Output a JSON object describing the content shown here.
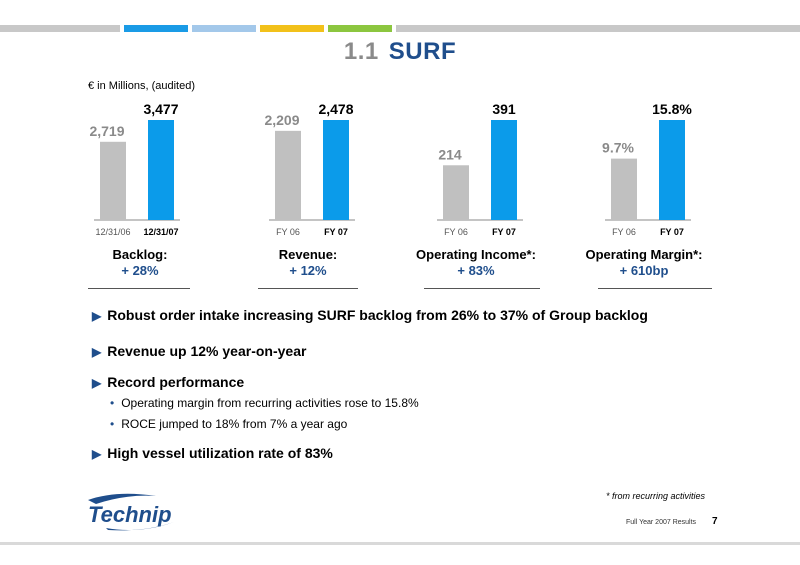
{
  "title": {
    "number": "1.1",
    "text": "SURF"
  },
  "units": "€ in Millions, (audited)",
  "chart_data": [
    {
      "type": "bar",
      "categories": [
        "12/31/06",
        "12/31/07"
      ],
      "values": [
        2719,
        3477
      ],
      "value_labels": [
        "2,719",
        "3,477"
      ],
      "colors": [
        "#c0c0c0",
        "#0b9bea"
      ],
      "title": "Backlog:",
      "change": "+ 28%"
    },
    {
      "type": "bar",
      "categories": [
        "FY 06",
        "FY 07"
      ],
      "values": [
        2209,
        2478
      ],
      "value_labels": [
        "2,209",
        "2,478"
      ],
      "colors": [
        "#c0c0c0",
        "#0b9bea"
      ],
      "title": "Revenue:",
      "change": "+ 12%"
    },
    {
      "type": "bar",
      "categories": [
        "FY 06",
        "FY 07"
      ],
      "values": [
        214,
        391
      ],
      "value_labels": [
        "214",
        "391"
      ],
      "colors": [
        "#c0c0c0",
        "#0b9bea"
      ],
      "title": "Operating Income*:",
      "change": "+ 83%"
    },
    {
      "type": "bar",
      "categories": [
        "FY 06",
        "FY 07"
      ],
      "values": [
        9.7,
        15.8
      ],
      "value_labels": [
        "9.7%",
        "15.8%"
      ],
      "colors": [
        "#c0c0c0",
        "#0b9bea"
      ],
      "title": "Operating Margin*:",
      "change": "+ 610bp"
    }
  ],
  "bullets": [
    {
      "text": "Robust order intake increasing SURF backlog from 26% to 37% of Group backlog",
      "subs": []
    },
    {
      "text": "Revenue up 12% year-on-year",
      "subs": []
    },
    {
      "text": "Record performance",
      "subs": [
        "Operating margin from recurring activities rose to 15.8%",
        "ROCE jumped to 18% from 7% a year ago"
      ]
    },
    {
      "text": "High vessel utilization rate of 83%",
      "subs": []
    }
  ],
  "footnote": "* from recurring activities",
  "logo": "Technip",
  "footer": "Full Year 2007 Results",
  "page_number": "7",
  "brand_colors": {
    "blue": "#1f4e8c",
    "bar_current": "#0b9bea",
    "bar_prior": "#c0c0c0"
  },
  "top_bar_colors": [
    "#c8c8c8",
    "#1a9be6",
    "#a3c8ea",
    "#f2c11a",
    "#8cc63f",
    "#c8c8c8"
  ]
}
